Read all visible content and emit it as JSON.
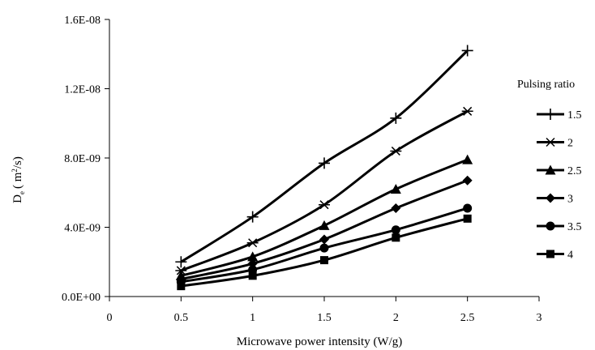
{
  "chart_data": {
    "type": "line",
    "title": "",
    "xlabel": "Microwave power intensity (W/g)",
    "ylabel_main": "D",
    "ylabel_sub": "e",
    "ylabel_unit_open": "( m",
    "ylabel_unit_sup": "2",
    "ylabel_unit_close": "/s)",
    "xlim": [
      0,
      3
    ],
    "ylim": [
      0,
      1.6e-08
    ],
    "x_ticks": [
      {
        "value": 0,
        "label": "0"
      },
      {
        "value": 0.5,
        "label": "0.5"
      },
      {
        "value": 1,
        "label": "1"
      },
      {
        "value": 1.5,
        "label": "1.5"
      },
      {
        "value": 2,
        "label": "2"
      },
      {
        "value": 2.5,
        "label": "2.5"
      },
      {
        "value": 3,
        "label": "3"
      }
    ],
    "y_ticks": [
      {
        "value": 0,
        "label": "0.0E+00"
      },
      {
        "value": 4e-09,
        "label": "4.0E-09"
      },
      {
        "value": 8e-09,
        "label": "8.0E-09"
      },
      {
        "value": 1.2e-08,
        "label": "1.2E-08"
      },
      {
        "value": 1.6e-08,
        "label": "1.6E-08"
      }
    ],
    "grid": false,
    "legend_title": "Pulsing ratio",
    "legend_position": "right",
    "x": [
      0.5,
      1,
      1.5,
      2,
      2.5
    ],
    "series": [
      {
        "name": "1.5",
        "marker": "plus",
        "values": [
          2e-09,
          4.6e-09,
          7.7e-09,
          1.03e-08,
          1.42e-08
        ]
      },
      {
        "name": "2",
        "marker": "star",
        "values": [
          1.5e-09,
          3.1e-09,
          5.3e-09,
          8.4e-09,
          1.07e-08
        ]
      },
      {
        "name": "2.5",
        "marker": "triangle",
        "values": [
          1.2e-09,
          2.3e-09,
          4.1e-09,
          6.2e-09,
          7.9e-09
        ]
      },
      {
        "name": "3",
        "marker": "diamond",
        "values": [
          1e-09,
          1.9e-09,
          3.3e-09,
          5.1e-09,
          6.7e-09
        ]
      },
      {
        "name": "3.5",
        "marker": "circle",
        "values": [
          8.5e-10,
          1.55e-09,
          2.8e-09,
          3.85e-09,
          5.1e-09
        ]
      },
      {
        "name": "4",
        "marker": "square",
        "values": [
          6e-10,
          1.2e-09,
          2.1e-09,
          3.4e-09,
          4.5e-09
        ]
      }
    ],
    "line_color": "#000000"
  }
}
